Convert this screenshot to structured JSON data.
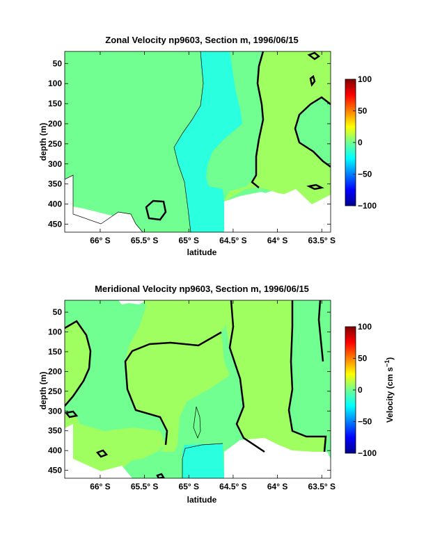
{
  "chart_data": [
    {
      "type": "contour",
      "title": "Zonal Velocity np9603, Section m, 1996/06/15",
      "xlabel": "latitude",
      "ylabel": "depth (m)",
      "x_ticks": [
        "66° S",
        "65.5° S",
        "65° S",
        "64.5° S",
        "64° S",
        "63.5° S"
      ],
      "x_tick_values": [
        -66,
        -65.5,
        -65,
        -64.5,
        -64,
        -63.5
      ],
      "y_ticks": [
        "50",
        "100",
        "150",
        "200",
        "250",
        "300",
        "350",
        "400",
        "450"
      ],
      "y_tick_values": [
        50,
        100,
        150,
        200,
        250,
        300,
        350,
        400,
        450
      ],
      "xlim": [
        -66.4,
        -63.4
      ],
      "ylim": [
        470,
        20
      ],
      "colorbar": {
        "ticks": [
          "100",
          "50",
          "0",
          "−50",
          "−100"
        ],
        "tick_values": [
          100,
          50,
          0,
          -50,
          -100
        ],
        "range": [
          -100,
          100
        ],
        "label": ""
      },
      "regions": [
        {
          "level": "0 to 10",
          "color": "#a0ff60",
          "desc": "eastern band north of 64.6° S"
        },
        {
          "level": "-10 to 0",
          "color": "#2affdf",
          "desc": "central band near 64.8–65° S"
        },
        {
          "level": "0 to -10",
          "color": "#70ff90",
          "desc": "background"
        }
      ]
    },
    {
      "type": "contour",
      "title": "Meridional Velocity np9603, Section m, 1996/06/15",
      "xlabel": "latitude",
      "ylabel": "depth (m)",
      "x_ticks": [
        "66° S",
        "65.5° S",
        "65° S",
        "64.5° S",
        "64° S",
        "63.5° S"
      ],
      "x_tick_values": [
        -66,
        -65.5,
        -65,
        -64.5,
        -64,
        -63.5
      ],
      "y_ticks": [
        "50",
        "100",
        "150",
        "200",
        "250",
        "300",
        "350",
        "400",
        "450"
      ],
      "y_tick_values": [
        50,
        100,
        150,
        200,
        250,
        300,
        350,
        400,
        450
      ],
      "xlim": [
        -66.4,
        -63.4
      ],
      "ylim": [
        470,
        20
      ],
      "colorbar": {
        "ticks": [
          "100",
          "50",
          "0",
          "−50",
          "−100"
        ],
        "tick_values": [
          100,
          50,
          0,
          -50,
          -100
        ],
        "range": [
          -100,
          100
        ],
        "label": "Velocity (cm s",
        "label_sup": "−1",
        "label_end": ")"
      },
      "regions": [
        {
          "level": "0 to 10",
          "color": "#a0ff60",
          "desc": "western and central-east bands"
        },
        {
          "level": "-10 to 0",
          "color": "#70ff90",
          "desc": "intermediate bands"
        },
        {
          "level": "-10 to -20",
          "color": "#2affdf",
          "desc": "deep core near 65° S"
        }
      ]
    }
  ]
}
